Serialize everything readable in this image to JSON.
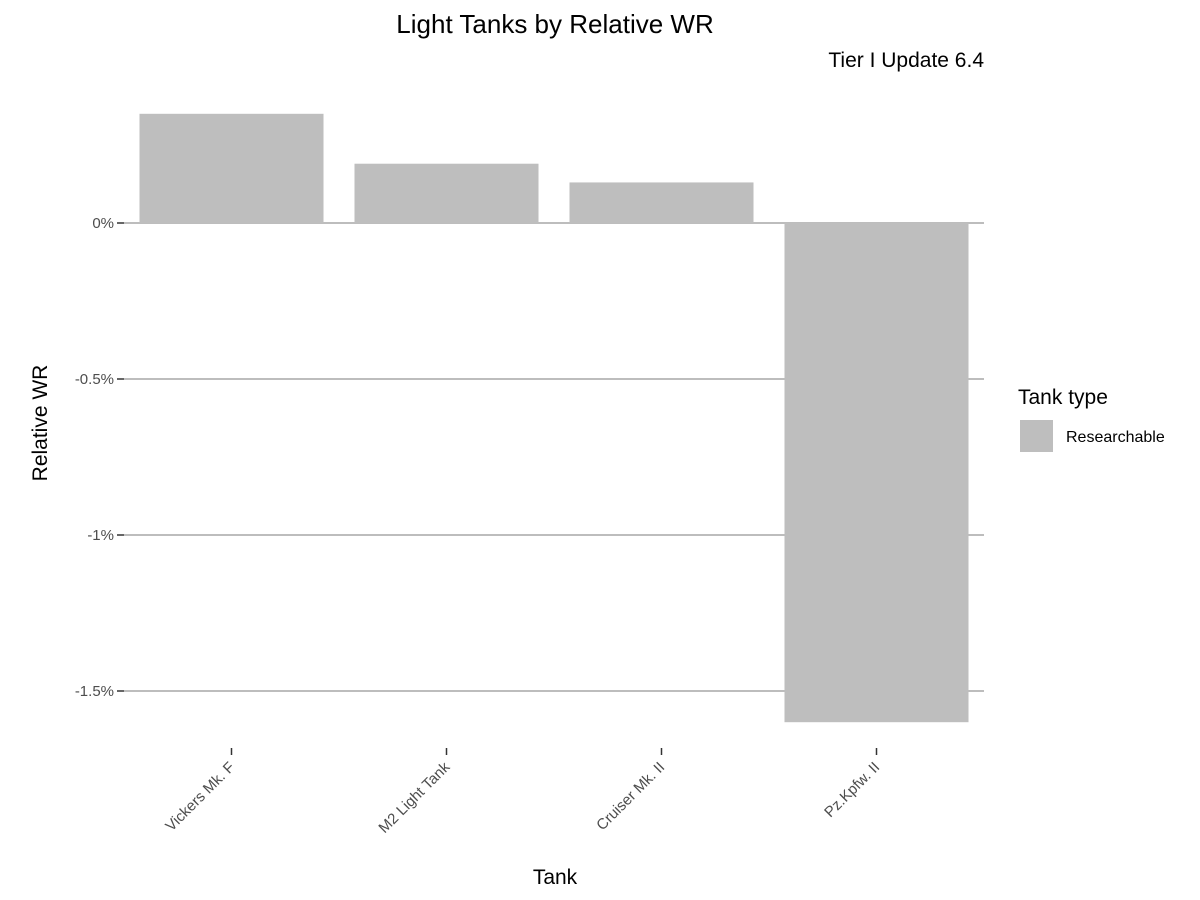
{
  "chart_data": {
    "type": "bar",
    "title": "Light Tanks by Relative WR",
    "subtitle": "Tier I Update 6.4",
    "xlabel": "Tank",
    "ylabel": "Relative WR",
    "categories": [
      "Vickers Mk. F",
      "M2 Light Tank",
      "Cruiser Mk. II",
      "Pz.Kpfw. II"
    ],
    "series": [
      {
        "name": "Researchable",
        "values": [
          0.35,
          0.19,
          0.13,
          -1.6
        ]
      }
    ],
    "ylim": [
      -1.65,
      0.38
    ],
    "yticks": [
      0,
      -0.5,
      -1,
      -1.5
    ],
    "ytick_labels": [
      "0%",
      "-0.5%",
      "-1%",
      "-1.5%"
    ],
    "grid": true,
    "legend": {
      "title": "Tank type",
      "position": "right"
    },
    "bar_color": "#bebebe"
  }
}
